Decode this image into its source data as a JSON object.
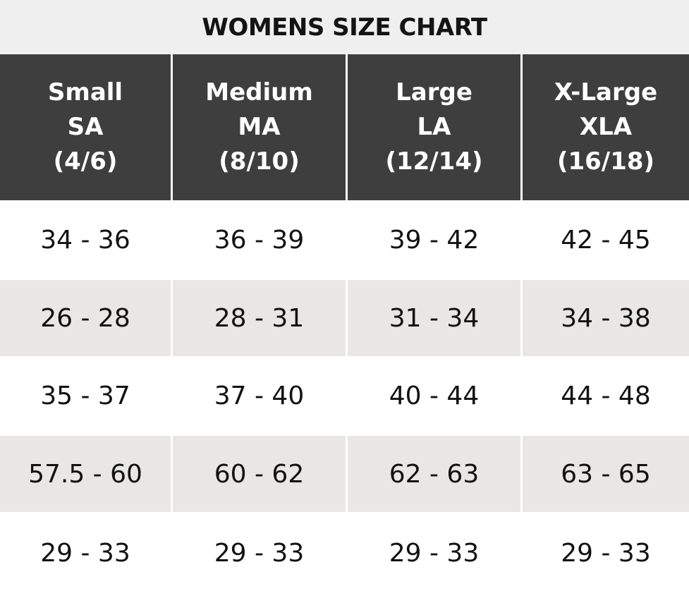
{
  "title": "WOMENS SIZE CHART",
  "columns": [
    {
      "name": "Small",
      "code": "SA",
      "sizes": "(4/6)"
    },
    {
      "name": "Medium",
      "code": "MA",
      "sizes": "(8/10)"
    },
    {
      "name": "Large",
      "code": "LA",
      "sizes": "(12/14)"
    },
    {
      "name": "X-Large",
      "code": "XLA",
      "sizes": "(16/18)"
    }
  ],
  "rows": [
    [
      "34 - 36",
      "36 - 39",
      "39 - 42",
      "42 - 45"
    ],
    [
      "26 - 28",
      "28 - 31",
      "31 - 34",
      "34 - 38"
    ],
    [
      "35 - 37",
      "37 - 40",
      "40 - 44",
      "44 - 48"
    ],
    [
      "57.5 - 60",
      "60 - 62",
      "62 - 63",
      "63 - 65"
    ],
    [
      "29 - 33",
      "29 - 33",
      "29 - 33",
      "29 - 33"
    ]
  ],
  "colors": {
    "header_bg": "#3f3e3e",
    "title_bg": "#efefef",
    "shaded_row_bg": "#e8e7e6"
  }
}
